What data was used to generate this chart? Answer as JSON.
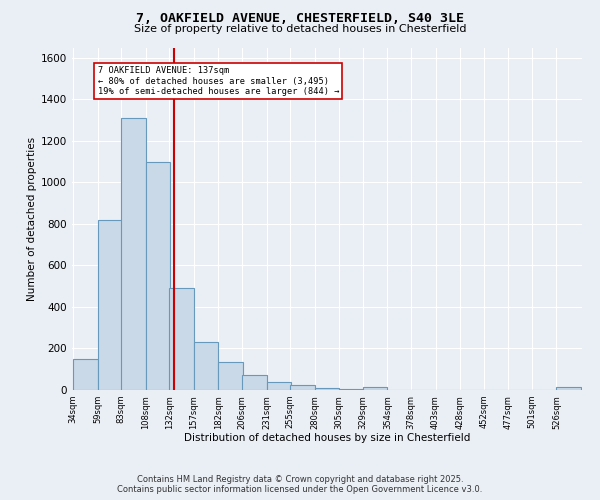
{
  "title_line1": "7, OAKFIELD AVENUE, CHESTERFIELD, S40 3LE",
  "title_line2": "Size of property relative to detached houses in Chesterfield",
  "xlabel": "Distribution of detached houses by size in Chesterfield",
  "ylabel": "Number of detached properties",
  "bar_labels": [
    "34sqm",
    "59sqm",
    "83sqm",
    "108sqm",
    "132sqm",
    "157sqm",
    "182sqm",
    "206sqm",
    "231sqm",
    "255sqm",
    "280sqm",
    "305sqm",
    "329sqm",
    "354sqm",
    "378sqm",
    "403sqm",
    "428sqm",
    "452sqm",
    "477sqm",
    "501sqm",
    "526sqm"
  ],
  "bar_values": [
    150,
    820,
    1310,
    1100,
    490,
    230,
    135,
    70,
    40,
    25,
    10,
    5,
    15,
    0,
    0,
    0,
    0,
    0,
    0,
    0,
    15
  ],
  "bar_color": "#c9d9e8",
  "bar_edgecolor": "#6699bb",
  "bar_linewidth": 0.8,
  "ylim": [
    0,
    1650
  ],
  "yticks": [
    0,
    200,
    400,
    600,
    800,
    1000,
    1200,
    1400,
    1600
  ],
  "property_size": 137,
  "property_label": "7 OAKFIELD AVENUE: 137sqm",
  "pct_smaller": "80% of detached houses are smaller (3,495)",
  "pct_larger": "19% of semi-detached houses are larger (844)",
  "red_line_color": "#cc0000",
  "annotation_box_color": "#ffffff",
  "annotation_box_edgecolor": "#cc0000",
  "background_color": "#eaeff5",
  "grid_color": "#ffffff",
  "footer_line1": "Contains HM Land Registry data © Crown copyright and database right 2025.",
  "footer_line2": "Contains public sector information licensed under the Open Government Licence v3.0.",
  "bin_width": 25
}
